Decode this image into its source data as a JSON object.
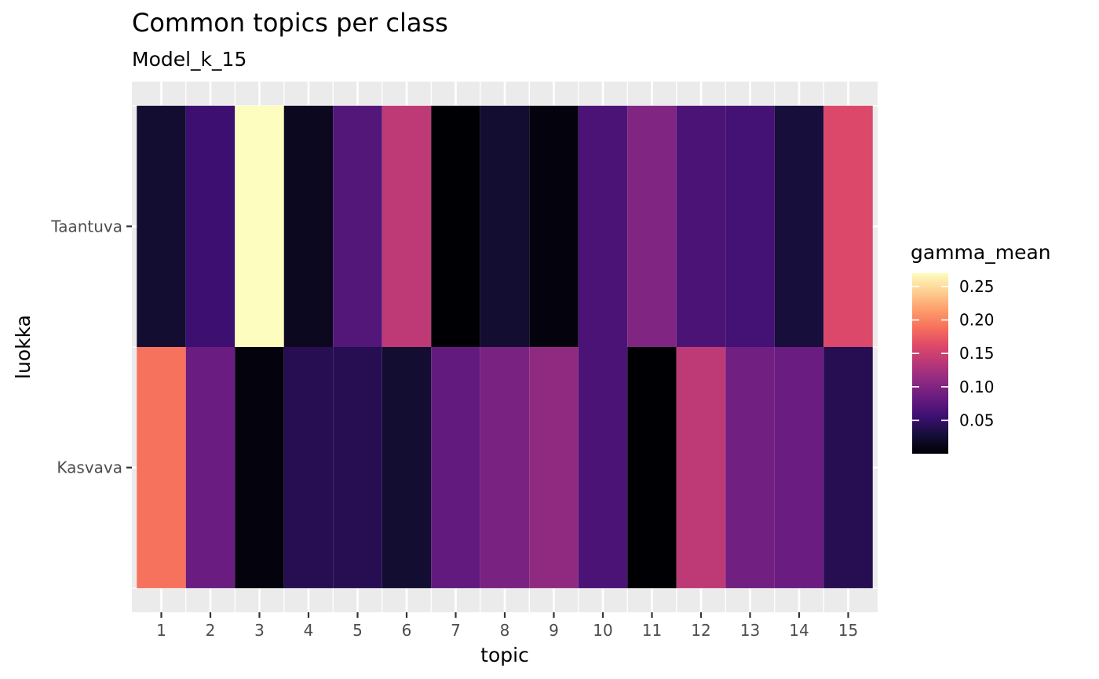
{
  "chart_data": {
    "type": "heatmap",
    "title": "Common topics per class",
    "subtitle": "Model_k_15",
    "xlabel": "topic",
    "ylabel": "luokka",
    "x_categories": [
      "1",
      "2",
      "3",
      "4",
      "5",
      "6",
      "7",
      "8",
      "9",
      "10",
      "11",
      "12",
      "13",
      "14",
      "15"
    ],
    "y_categories": [
      "Kasvava",
      "Taantuva"
    ],
    "values": {
      "Taantuva": [
        0.025,
        0.055,
        0.27,
        0.015,
        0.07,
        0.14,
        0.0,
        0.025,
        0.005,
        0.065,
        0.1,
        0.065,
        0.06,
        0.03,
        0.16
      ],
      "Kasvava": [
        0.19,
        0.085,
        0.005,
        0.04,
        0.04,
        0.025,
        0.08,
        0.095,
        0.11,
        0.065,
        0.0,
        0.14,
        0.09,
        0.085,
        0.04
      ]
    },
    "legend": {
      "title": "gamma_mean",
      "ticks": [
        0.05,
        0.1,
        0.15,
        0.2,
        0.25
      ],
      "tick_labels": [
        "0.05",
        "0.10",
        "0.15",
        "0.20",
        "0.25"
      ],
      "range": [
        0.0,
        0.27
      ],
      "palette": "magma",
      "placement": "right"
    },
    "colors": {
      "panel_background": "#ebebeb",
      "grid": "#ffffff",
      "tick_color": "#333333"
    }
  }
}
